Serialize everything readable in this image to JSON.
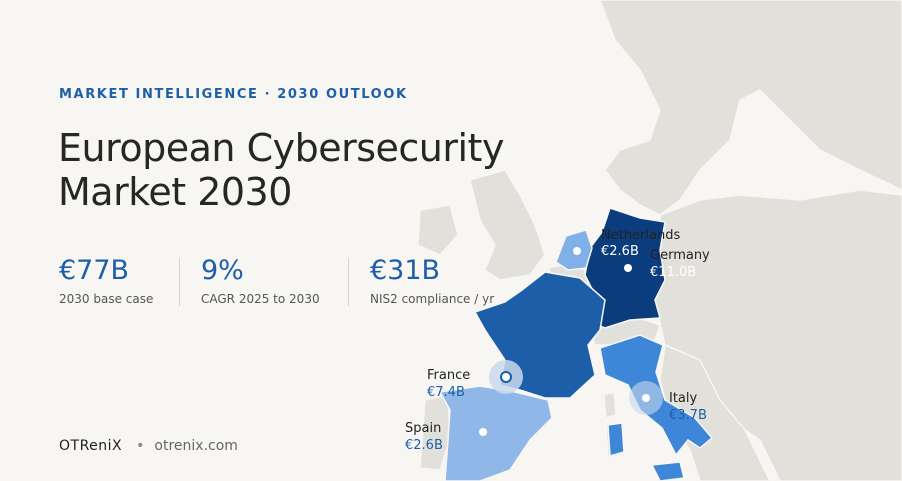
{
  "header": {
    "eyebrow": "MARKET INTELLIGENCE · 2030 OUTLOOK",
    "title_line1": "European Cybersecurity",
    "title_line2": "Market 2030"
  },
  "stats": [
    {
      "value": "€77B",
      "label": "2030 base case"
    },
    {
      "value": "9%",
      "label": "CAGR 2025 to 2030"
    },
    {
      "value": "€31B",
      "label": "NIS2 compliance / yr"
    }
  ],
  "footer": {
    "brand": "OTReniX",
    "separator": "•",
    "site": "otrenix.com"
  },
  "countries": [
    {
      "name": "Netherlands",
      "value": "€2.6B"
    },
    {
      "name": "Germany",
      "value": "€11.0B"
    },
    {
      "name": "France",
      "value": "€7.4B"
    },
    {
      "name": "Italy",
      "value": "€3.7B"
    },
    {
      "name": "Spain",
      "value": "€2.6B"
    }
  ],
  "colors": {
    "accent": "#1d5fa8",
    "germany": "#0b3d7e",
    "france": "#1c5ea8",
    "italy": "#3e86d8",
    "netherlands": "#7fb0e8",
    "spain": "#8fb8e8",
    "land": "#e3e1dc",
    "background": "#f7f6f2"
  }
}
